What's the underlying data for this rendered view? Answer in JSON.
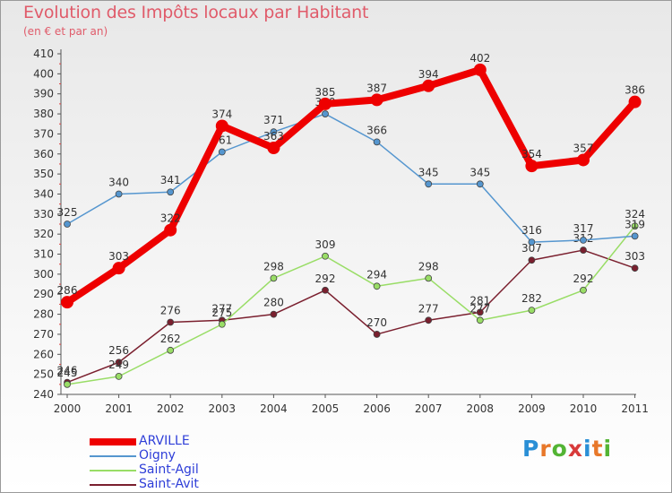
{
  "brand": {
    "letters": [
      "P",
      "r",
      "o",
      "x",
      "i",
      "t",
      "i"
    ],
    "colors": [
      "#2a8fd6",
      "#e8782a",
      "#53b434",
      "#d83a3a",
      "#2a8fd6",
      "#e8782a",
      "#53b434"
    ]
  },
  "chart_data": {
    "type": "line",
    "title": "Evolution des Impôts locaux par Habitant",
    "subtitle": "(en € et par an)",
    "xlabel": "",
    "ylabel": "",
    "x": [
      "2000",
      "2001",
      "2002",
      "2003",
      "2004",
      "2005",
      "2006",
      "2007",
      "2008",
      "2009",
      "2010",
      "2011"
    ],
    "ylim": [
      240,
      410
    ],
    "yticks": [
      240,
      250,
      260,
      270,
      280,
      290,
      300,
      310,
      320,
      330,
      340,
      350,
      360,
      370,
      380,
      390,
      400,
      410
    ],
    "grid": false,
    "legend_position": "bottom-left",
    "series": [
      {
        "name": "Saint-Avit",
        "color": "#7a1f2e",
        "values": [
          246,
          256,
          276,
          277,
          280,
          292,
          270,
          277,
          281,
          307,
          312,
          303
        ]
      },
      {
        "name": "Saint-Agil",
        "color": "#99dd66",
        "values": [
          245,
          249,
          262,
          275,
          298,
          309,
          294,
          298,
          277,
          282,
          292,
          324
        ]
      },
      {
        "name": "Oigny",
        "color": "#5596cf",
        "values": [
          325,
          340,
          341,
          361,
          371,
          380,
          366,
          345,
          345,
          316,
          317,
          319
        ]
      },
      {
        "name": "ARVILLE",
        "color": "#ee0000",
        "values": [
          286,
          303,
          322,
          374,
          363,
          385,
          387,
          394,
          402,
          354,
          357,
          386
        ]
      }
    ],
    "legend_order": [
      "ARVILLE",
      "Oigny",
      "Saint-Agil",
      "Saint-Avit"
    ]
  }
}
